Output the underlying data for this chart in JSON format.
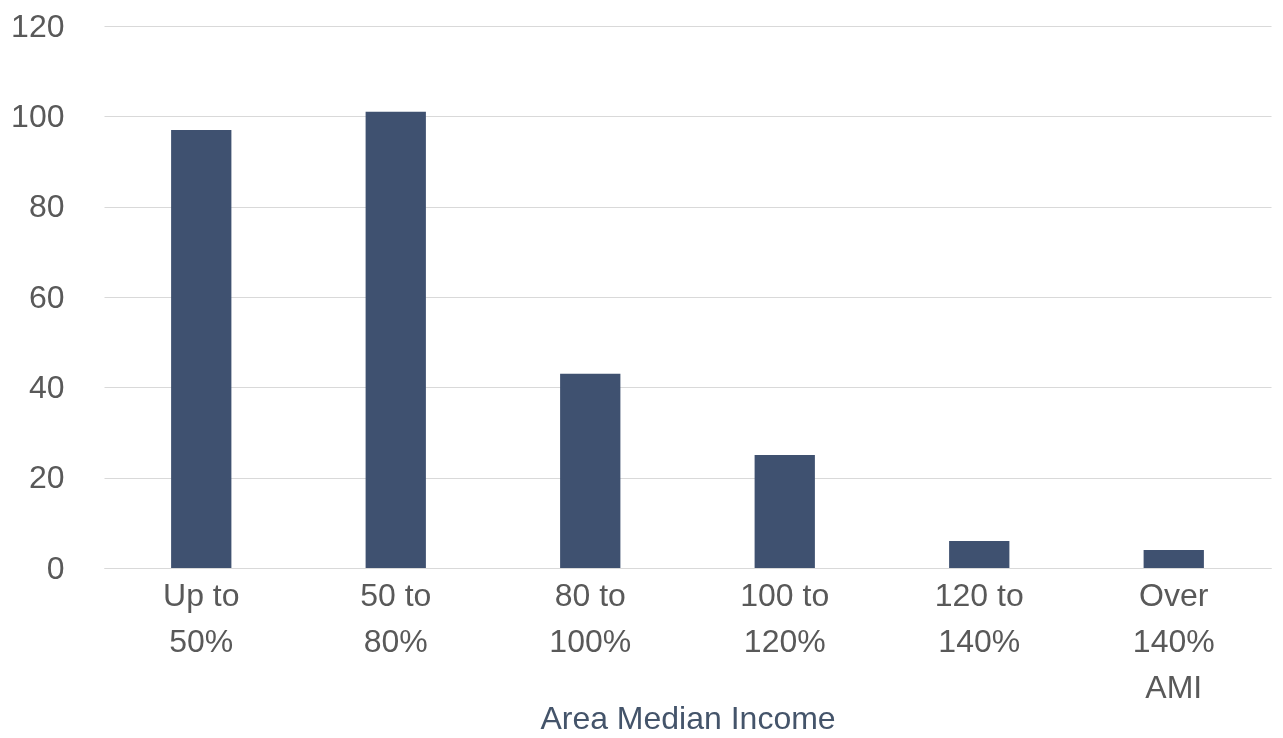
{
  "chart_data": {
    "type": "bar",
    "xlabel": "Area Median Income",
    "categories": [
      "Up to\n50%",
      "50 to\n80%",
      "80 to\n100%",
      "100 to\n120%",
      "120 to\n140%",
      "Over\n140%\nAMI"
    ],
    "values": [
      97,
      101,
      43,
      25,
      6,
      4
    ],
    "color": "#3f5170",
    "ylim": [
      0,
      120
    ],
    "yticks": [
      0,
      20,
      40,
      60,
      80,
      100,
      120
    ],
    "grid": "y"
  }
}
